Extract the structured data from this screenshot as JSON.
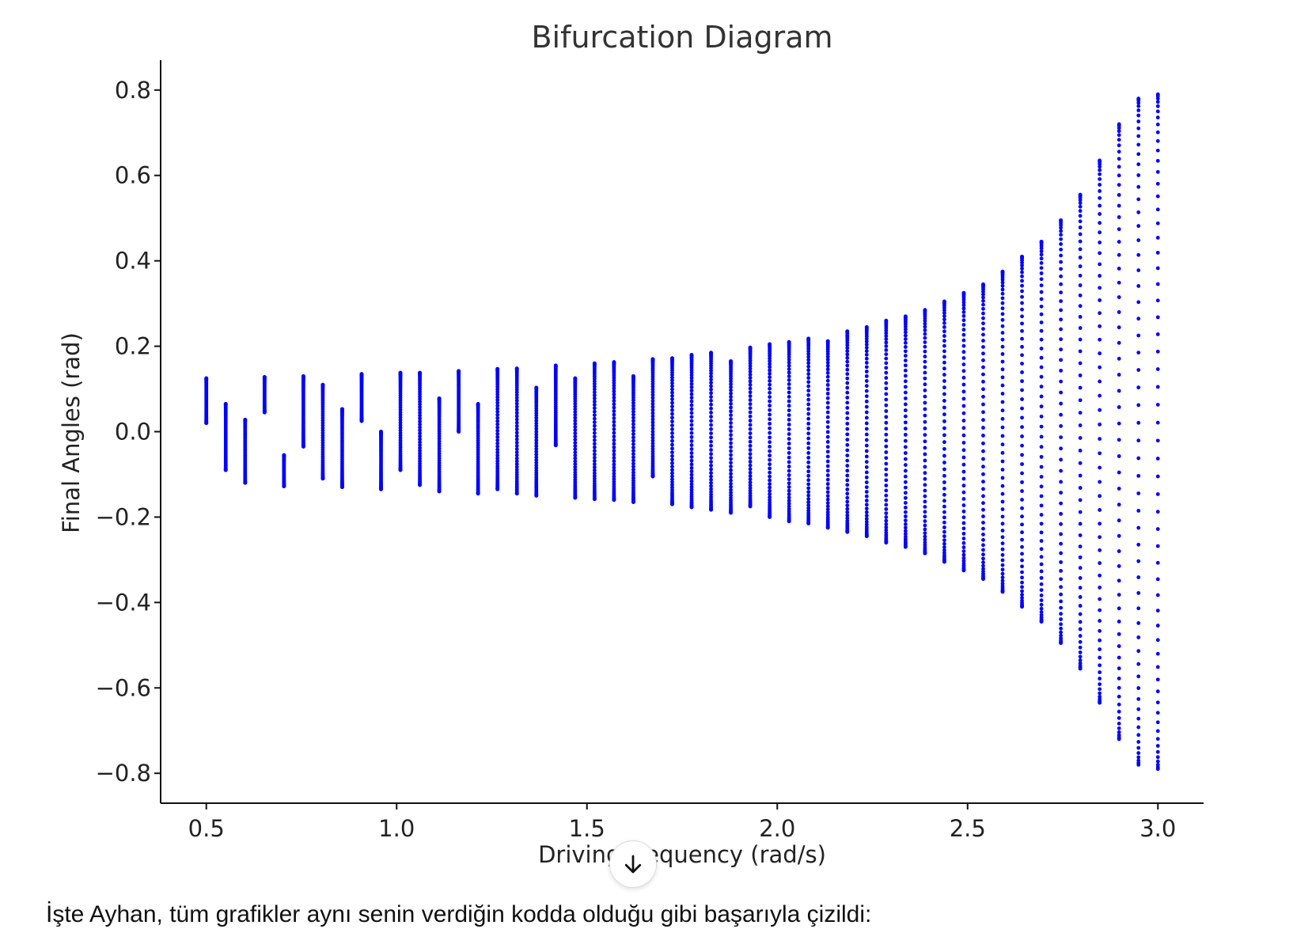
{
  "chart_data": {
    "type": "scatter",
    "title": "Bifurcation Diagram",
    "xlabel": "Driving frequency (rad/s)",
    "ylabel": "Final Angles (rad)",
    "xlim": [
      0.38,
      3.12
    ],
    "ylim": [
      -0.87,
      0.87
    ],
    "xticks": [
      0.5,
      1.0,
      1.5,
      2.0,
      2.5,
      3.0
    ],
    "xtick_labels": [
      "0.5",
      "1.0",
      "1.5",
      "2.0",
      "2.5",
      "3.0"
    ],
    "yticks": [
      0.8,
      0.6,
      0.4,
      0.2,
      0.0,
      -0.2,
      -0.4,
      -0.6,
      -0.8
    ],
    "ytick_labels": [
      "0.8",
      "0.6",
      "0.4",
      "0.2",
      "0.0",
      "−0.2",
      "−0.4",
      "−0.6",
      "−0.8"
    ],
    "grid": false,
    "marker_color": "#0000ff",
    "series": [
      {
        "x": 0.5,
        "ymin": 0.02,
        "ymax": 0.125,
        "n": 60
      },
      {
        "x": 0.551,
        "ymin": -0.09,
        "ymax": 0.065,
        "n": 60
      },
      {
        "x": 0.602,
        "ymin": -0.12,
        "ymax": 0.028,
        "n": 60
      },
      {
        "x": 0.653,
        "ymin": 0.045,
        "ymax": 0.128,
        "n": 60
      },
      {
        "x": 0.704,
        "ymin": -0.128,
        "ymax": -0.055,
        "n": 60
      },
      {
        "x": 0.755,
        "ymin": -0.035,
        "ymax": 0.13,
        "n": 60
      },
      {
        "x": 0.806,
        "ymin": -0.11,
        "ymax": 0.11,
        "n": 60
      },
      {
        "x": 0.857,
        "ymin": -0.13,
        "ymax": 0.053,
        "n": 60
      },
      {
        "x": 0.908,
        "ymin": 0.025,
        "ymax": 0.135,
        "n": 60
      },
      {
        "x": 0.959,
        "ymin": -0.135,
        "ymax": 0.0,
        "n": 60
      },
      {
        "x": 1.01,
        "ymin": -0.09,
        "ymax": 0.138,
        "n": 60
      },
      {
        "x": 1.061,
        "ymin": -0.125,
        "ymax": 0.138,
        "n": 60
      },
      {
        "x": 1.112,
        "ymin": -0.14,
        "ymax": 0.078,
        "n": 60
      },
      {
        "x": 1.163,
        "ymin": 0.0,
        "ymax": 0.142,
        "n": 60
      },
      {
        "x": 1.214,
        "ymin": -0.145,
        "ymax": 0.065,
        "n": 60
      },
      {
        "x": 1.265,
        "ymin": -0.135,
        "ymax": 0.147,
        "n": 60
      },
      {
        "x": 1.316,
        "ymin": -0.145,
        "ymax": 0.148,
        "n": 60
      },
      {
        "x": 1.367,
        "ymin": -0.15,
        "ymax": 0.103,
        "n": 60
      },
      {
        "x": 1.418,
        "ymin": -0.032,
        "ymax": 0.155,
        "n": 60
      },
      {
        "x": 1.469,
        "ymin": -0.155,
        "ymax": 0.125,
        "n": 60
      },
      {
        "x": 1.52,
        "ymin": -0.158,
        "ymax": 0.16,
        "n": 60
      },
      {
        "x": 1.571,
        "ymin": -0.16,
        "ymax": 0.163,
        "n": 60
      },
      {
        "x": 1.622,
        "ymin": -0.165,
        "ymax": 0.13,
        "n": 60
      },
      {
        "x": 1.673,
        "ymin": -0.105,
        "ymax": 0.17,
        "n": 60
      },
      {
        "x": 1.724,
        "ymin": -0.17,
        "ymax": 0.172,
        "n": 60
      },
      {
        "x": 1.775,
        "ymin": -0.177,
        "ymax": 0.18,
        "n": 60
      },
      {
        "x": 1.826,
        "ymin": -0.183,
        "ymax": 0.185,
        "n": 60
      },
      {
        "x": 1.878,
        "ymin": -0.19,
        "ymax": 0.165,
        "n": 60
      },
      {
        "x": 1.929,
        "ymin": -0.175,
        "ymax": 0.197,
        "n": 60
      },
      {
        "x": 1.98,
        "ymin": -0.2,
        "ymax": 0.205,
        "n": 60
      },
      {
        "x": 2.031,
        "ymin": -0.21,
        "ymax": 0.21,
        "n": 60
      },
      {
        "x": 2.082,
        "ymin": -0.215,
        "ymax": 0.218,
        "n": 60
      },
      {
        "x": 2.133,
        "ymin": -0.225,
        "ymax": 0.212,
        "n": 60
      },
      {
        "x": 2.184,
        "ymin": -0.235,
        "ymax": 0.235,
        "n": 60
      },
      {
        "x": 2.235,
        "ymin": -0.245,
        "ymax": 0.245,
        "n": 60
      },
      {
        "x": 2.286,
        "ymin": -0.26,
        "ymax": 0.26,
        "n": 60
      },
      {
        "x": 2.337,
        "ymin": -0.27,
        "ymax": 0.27,
        "n": 60
      },
      {
        "x": 2.388,
        "ymin": -0.285,
        "ymax": 0.285,
        "n": 60
      },
      {
        "x": 2.439,
        "ymin": -0.305,
        "ymax": 0.305,
        "n": 60
      },
      {
        "x": 2.49,
        "ymin": -0.325,
        "ymax": 0.325,
        "n": 60
      },
      {
        "x": 2.541,
        "ymin": -0.345,
        "ymax": 0.345,
        "n": 60
      },
      {
        "x": 2.592,
        "ymin": -0.375,
        "ymax": 0.375,
        "n": 60
      },
      {
        "x": 2.643,
        "ymin": -0.41,
        "ymax": 0.41,
        "n": 60
      },
      {
        "x": 2.694,
        "ymin": -0.445,
        "ymax": 0.445,
        "n": 60
      },
      {
        "x": 2.745,
        "ymin": -0.495,
        "ymax": 0.495,
        "n": 60
      },
      {
        "x": 2.796,
        "ymin": -0.555,
        "ymax": 0.555,
        "n": 60
      },
      {
        "x": 2.847,
        "ymin": -0.635,
        "ymax": 0.635,
        "n": 60
      },
      {
        "x": 2.898,
        "ymin": -0.72,
        "ymax": 0.72,
        "n": 60
      },
      {
        "x": 2.949,
        "ymin": -0.78,
        "ymax": 0.78,
        "n": 60
      },
      {
        "x": 3.0,
        "ymin": -0.79,
        "ymax": 0.79,
        "n": 60
      }
    ]
  },
  "message": {
    "text": "İşte Ayhan, tüm grafikler aynı senin verdiğin kodda olduğu gibi başarıyla çizildi:"
  },
  "scroll_button": {
    "icon": "arrow-down-icon"
  }
}
